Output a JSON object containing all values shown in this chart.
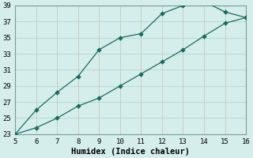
{
  "xlabel": "Humidex (Indice chaleur)",
  "background_color": "#d5eeec",
  "grid_color": "#b8d8d4",
  "line_color": "#1a6b5e",
  "xlim": [
    5,
    16
  ],
  "ylim": [
    23,
    39
  ],
  "xticks": [
    5,
    6,
    7,
    8,
    9,
    10,
    11,
    12,
    13,
    14,
    15,
    16
  ],
  "yticks": [
    23,
    25,
    27,
    29,
    31,
    33,
    35,
    37,
    39
  ],
  "line1_x": [
    5,
    6,
    7,
    8,
    9,
    10,
    11,
    12,
    13,
    14,
    15,
    16
  ],
  "line1_y": [
    23,
    26,
    28.2,
    30.2,
    33.5,
    35,
    35.5,
    38,
    39,
    39.5,
    38.2,
    37.5
  ],
  "line2_x": [
    5,
    6,
    7,
    8,
    9,
    10,
    11,
    12,
    13,
    14,
    15,
    16
  ],
  "line2_y": [
    23,
    23.8,
    25,
    26.5,
    27.5,
    29,
    30.5,
    32,
    33.5,
    35.2,
    36.8,
    37.5
  ],
  "font_family": "monospace",
  "tick_fontsize": 6.5,
  "xlabel_fontsize": 7.5
}
